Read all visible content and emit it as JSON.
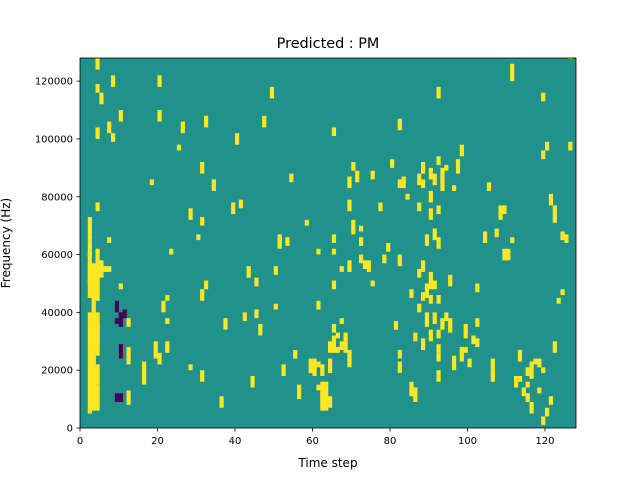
{
  "chart_data": {
    "type": "heatmap",
    "title": "Predicted : PM",
    "xlabel": "Time step",
    "ylabel": "Frequency (Hz)",
    "xlim": [
      0,
      128
    ],
    "ylim": [
      0,
      128000
    ],
    "x_ticks": [
      {
        "value": 0,
        "label": "0"
      },
      {
        "value": 20,
        "label": "20"
      },
      {
        "value": 40,
        "label": "40"
      },
      {
        "value": 60,
        "label": "60"
      },
      {
        "value": 80,
        "label": "80"
      },
      {
        "value": 100,
        "label": "100"
      },
      {
        "value": 120,
        "label": "120"
      }
    ],
    "y_ticks": [
      {
        "value": 0,
        "label": "0"
      },
      {
        "value": 20000,
        "label": "20000"
      },
      {
        "value": 40000,
        "label": "40000"
      },
      {
        "value": 60000,
        "label": "60000"
      },
      {
        "value": 80000,
        "label": "80000"
      },
      {
        "value": 100000,
        "label": "100000"
      },
      {
        "value": 120000,
        "label": "120000"
      }
    ],
    "grid": false,
    "colormap": "viridis",
    "background_color": "#21918c",
    "high_color": "#fde725",
    "low_color": "#440154",
    "time_steps": 128,
    "frequency_bins": 128,
    "bin_width_hz": 1000,
    "cells_high": [
      [
        2,
        5,
        40
      ],
      [
        2,
        45,
        57
      ],
      [
        2,
        50,
        52
      ],
      [
        2,
        52,
        60
      ],
      [
        2,
        59,
        61
      ],
      [
        2,
        60,
        65
      ],
      [
        2,
        65,
        67
      ],
      [
        2,
        67,
        73
      ],
      [
        3,
        6,
        40
      ],
      [
        3,
        8,
        11
      ],
      [
        3,
        11,
        14
      ],
      [
        3,
        14,
        17
      ],
      [
        3,
        17,
        21
      ],
      [
        3,
        21,
        26
      ],
      [
        3,
        28,
        33
      ],
      [
        3,
        28,
        36
      ],
      [
        3,
        40,
        47
      ],
      [
        3,
        47,
        57
      ],
      [
        4,
        6,
        15
      ],
      [
        4,
        15,
        22
      ],
      [
        4,
        25,
        36
      ],
      [
        4,
        29,
        40
      ],
      [
        4,
        44,
        57
      ],
      [
        4,
        52,
        57
      ],
      [
        4,
        56,
        60
      ],
      [
        4,
        60,
        62
      ],
      [
        4,
        75,
        78
      ],
      [
        4,
        100,
        104
      ],
      [
        4,
        116,
        119
      ],
      [
        4,
        124,
        128
      ],
      [
        5,
        52,
        58
      ],
      [
        5,
        112,
        116
      ],
      [
        6,
        54,
        56
      ],
      [
        7,
        54,
        56
      ],
      [
        7,
        64,
        66
      ],
      [
        7,
        102,
        106
      ],
      [
        8,
        99,
        102
      ],
      [
        8,
        118,
        122
      ],
      [
        10,
        24,
        28
      ],
      [
        10,
        48,
        50
      ],
      [
        10,
        106,
        110
      ],
      [
        12,
        8,
        13
      ],
      [
        12,
        22,
        28
      ],
      [
        12,
        35,
        38
      ],
      [
        16,
        15,
        23
      ],
      [
        18,
        84,
        86
      ],
      [
        19,
        24,
        30
      ],
      [
        20,
        22,
        26
      ],
      [
        20,
        106,
        110
      ],
      [
        20,
        118,
        122
      ],
      [
        21,
        40,
        44
      ],
      [
        22,
        26,
        30
      ],
      [
        22,
        36,
        38
      ],
      [
        22,
        44,
        46
      ],
      [
        23,
        60,
        62
      ],
      [
        25,
        96,
        98
      ],
      [
        26,
        102,
        106
      ],
      [
        28,
        20,
        22
      ],
      [
        28,
        72,
        76
      ],
      [
        30,
        65,
        67
      ],
      [
        31,
        16,
        20
      ],
      [
        31,
        44,
        48
      ],
      [
        31,
        70,
        73
      ],
      [
        31,
        88,
        92
      ],
      [
        32,
        48,
        51
      ],
      [
        32,
        104,
        108
      ],
      [
        34,
        82,
        86
      ],
      [
        36,
        7,
        11
      ],
      [
        37,
        34,
        38
      ],
      [
        39,
        74,
        78
      ],
      [
        40,
        98,
        102
      ],
      [
        41,
        76,
        79
      ],
      [
        42,
        37,
        40
      ],
      [
        43,
        52,
        56
      ],
      [
        44,
        14,
        18
      ],
      [
        45,
        38,
        41
      ],
      [
        45,
        49,
        52
      ],
      [
        46,
        32,
        36
      ],
      [
        47,
        104,
        108
      ],
      [
        49,
        114,
        118
      ],
      [
        50,
        41,
        43
      ],
      [
        50,
        53,
        56
      ],
      [
        51,
        63,
        66
      ],
      [
        51,
        62,
        67
      ],
      [
        51,
        64,
        66
      ],
      [
        52,
        18,
        22
      ],
      [
        53,
        63,
        66
      ],
      [
        54,
        85,
        88
      ],
      [
        55,
        24,
        27
      ],
      [
        56,
        10,
        15
      ],
      [
        58,
        70,
        72
      ],
      [
        59,
        19,
        24
      ],
      [
        60,
        18,
        24
      ],
      [
        61,
        13,
        15
      ],
      [
        61,
        21,
        23
      ],
      [
        61,
        41,
        44
      ],
      [
        61,
        60,
        62
      ],
      [
        62,
        6,
        12
      ],
      [
        62,
        11,
        16
      ],
      [
        62,
        18,
        22
      ],
      [
        63,
        6,
        11
      ],
      [
        63,
        10,
        16
      ],
      [
        64,
        7,
        11
      ],
      [
        64,
        19,
        24
      ],
      [
        64,
        26,
        29
      ],
      [
        64,
        27,
        30
      ],
      [
        65,
        29,
        32
      ],
      [
        65,
        26,
        30
      ],
      [
        65,
        33,
        36
      ],
      [
        65,
        48,
        51
      ],
      [
        65,
        60,
        62
      ],
      [
        65,
        64,
        67
      ],
      [
        65,
        101,
        104
      ],
      [
        66,
        26,
        28
      ],
      [
        66,
        31,
        33
      ],
      [
        67,
        27,
        30
      ],
      [
        67,
        36,
        38
      ],
      [
        67,
        54,
        56
      ],
      [
        68,
        26,
        30
      ],
      [
        68,
        30,
        33
      ],
      [
        69,
        21,
        24
      ],
      [
        69,
        23,
        27
      ],
      [
        69,
        54,
        58
      ],
      [
        69,
        75,
        79
      ],
      [
        69,
        83,
        87
      ],
      [
        70,
        67,
        72
      ],
      [
        70,
        89,
        92
      ],
      [
        71,
        85,
        89
      ],
      [
        72,
        63,
        66
      ],
      [
        72,
        57,
        60
      ],
      [
        72,
        68,
        70
      ],
      [
        73,
        55,
        58
      ],
      [
        74,
        54,
        58
      ],
      [
        75,
        49,
        51
      ],
      [
        75,
        86,
        89
      ],
      [
        77,
        75,
        78
      ],
      [
        78,
        57,
        60
      ],
      [
        79,
        61,
        64
      ],
      [
        80,
        90,
        93
      ],
      [
        81,
        34,
        37
      ],
      [
        82,
        19,
        23
      ],
      [
        82,
        24,
        27
      ],
      [
        82,
        56,
        60
      ],
      [
        82,
        83,
        86
      ],
      [
        82,
        103,
        107
      ],
      [
        83,
        83,
        87
      ],
      [
        84,
        79,
        81
      ],
      [
        85,
        11,
        16
      ],
      [
        85,
        45,
        48
      ],
      [
        86,
        9,
        14
      ],
      [
        86,
        30,
        33
      ],
      [
        87,
        40,
        43
      ],
      [
        87,
        52,
        55
      ],
      [
        87,
        75,
        78
      ],
      [
        87,
        84,
        88
      ],
      [
        88,
        27,
        31
      ],
      [
        88,
        44,
        47
      ],
      [
        88,
        54,
        58
      ],
      [
        88,
        83,
        86
      ],
      [
        88,
        88,
        92
      ],
      [
        89,
        35,
        40
      ],
      [
        89,
        45,
        50
      ],
      [
        89,
        63,
        67
      ],
      [
        90,
        30,
        34
      ],
      [
        90,
        43,
        46
      ],
      [
        90,
        48,
        50
      ],
      [
        90,
        50,
        54
      ],
      [
        90,
        72,
        76
      ],
      [
        90,
        78,
        82
      ],
      [
        90,
        86,
        90
      ],
      [
        91,
        36,
        40
      ],
      [
        91,
        48,
        51
      ],
      [
        91,
        65,
        69
      ],
      [
        91,
        84,
        88
      ],
      [
        92,
        16,
        20
      ],
      [
        92,
        23,
        26
      ],
      [
        92,
        26,
        29
      ],
      [
        92,
        31,
        34
      ],
      [
        92,
        43,
        46
      ],
      [
        92,
        62,
        66
      ],
      [
        92,
        74,
        77
      ],
      [
        92,
        91,
        94
      ],
      [
        92,
        114,
        118
      ],
      [
        93,
        34,
        38
      ],
      [
        93,
        82,
        86
      ],
      [
        93,
        86,
        90
      ],
      [
        94,
        37,
        40
      ],
      [
        94,
        89,
        91
      ],
      [
        95,
        33,
        38
      ],
      [
        95,
        49,
        53
      ],
      [
        96,
        20,
        25
      ],
      [
        96,
        82,
        84
      ],
      [
        97,
        88,
        93
      ],
      [
        98,
        23,
        28
      ],
      [
        98,
        94,
        98
      ],
      [
        99,
        26,
        28
      ],
      [
        99,
        31,
        36
      ],
      [
        100,
        21,
        24
      ],
      [
        101,
        29,
        32
      ],
      [
        102,
        28,
        31
      ],
      [
        102,
        35,
        38
      ],
      [
        102,
        47,
        50
      ],
      [
        104,
        64,
        68
      ],
      [
        105,
        82,
        85
      ],
      [
        106,
        16,
        19
      ],
      [
        106,
        18,
        24
      ],
      [
        107,
        66,
        69
      ],
      [
        108,
        72,
        77
      ],
      [
        109,
        58,
        62
      ],
      [
        109,
        74,
        77
      ],
      [
        110,
        58,
        62
      ],
      [
        111,
        64,
        66
      ],
      [
        111,
        120,
        126
      ],
      [
        112,
        14,
        18
      ],
      [
        113,
        16,
        18
      ],
      [
        113,
        23,
        27
      ],
      [
        114,
        11,
        14
      ],
      [
        115,
        9,
        12
      ],
      [
        115,
        14,
        16
      ],
      [
        115,
        18,
        21
      ],
      [
        116,
        5,
        9
      ],
      [
        116,
        17,
        23
      ],
      [
        117,
        22,
        24
      ],
      [
        118,
        12,
        14
      ],
      [
        118,
        21,
        24
      ],
      [
        119,
        1,
        4
      ],
      [
        119,
        19,
        21
      ],
      [
        119,
        93,
        96
      ],
      [
        119,
        113,
        116
      ],
      [
        120,
        4,
        7
      ],
      [
        120,
        96,
        99
      ],
      [
        121,
        8,
        11
      ],
      [
        121,
        77,
        81
      ],
      [
        122,
        71,
        77
      ],
      [
        122,
        26,
        30
      ],
      [
        123,
        43,
        45
      ],
      [
        124,
        46,
        48
      ],
      [
        124,
        65,
        68
      ],
      [
        125,
        64,
        67
      ],
      [
        126,
        96,
        99
      ],
      [
        126,
        128,
        128
      ]
    ],
    "cells_low": [
      [
        9,
        36,
        38
      ],
      [
        9,
        40,
        44
      ],
      [
        9,
        9,
        12
      ],
      [
        10,
        35,
        40
      ],
      [
        10,
        24,
        29
      ],
      [
        10,
        9,
        12
      ],
      [
        11,
        38,
        41
      ]
    ]
  }
}
